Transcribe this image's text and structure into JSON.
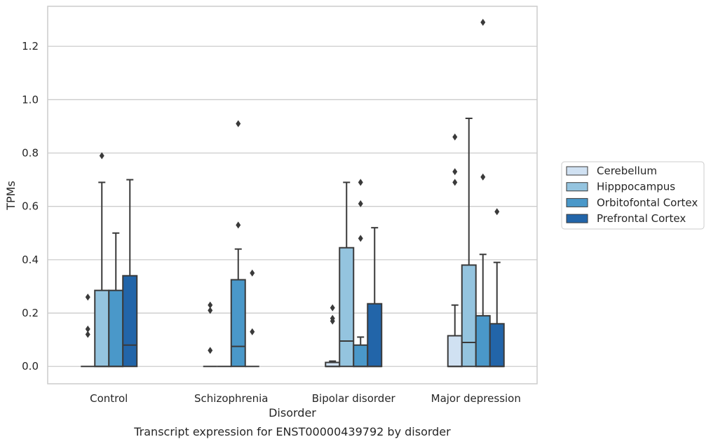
{
  "chart_data": {
    "type": "box",
    "caption": "Transcript expression for ENST00000439792 by disorder",
    "xlabel": "Disorder",
    "ylabel": "TPMs",
    "ylim": [
      -0.065,
      1.35
    ],
    "yticks": [
      0.0,
      0.2,
      0.4,
      0.6,
      0.8,
      1.0,
      1.2
    ],
    "ytick_labels": [
      "0.0",
      "0.2",
      "0.4",
      "0.6",
      "0.8",
      "1.0",
      "1.2"
    ],
    "categories": [
      "Control",
      "Schizophrenia",
      "Bipolar disorder",
      "Major depression"
    ],
    "grid": true,
    "legend_position": "right",
    "series": [
      {
        "name": "Cerebellum",
        "color": "#d0e1f2",
        "boxes": [
          {
            "q1": 0.0,
            "median": 0.0,
            "q3": 0.0,
            "whisker_low": 0.0,
            "whisker_high": 0.0,
            "outliers": [
              0.26,
              0.14,
              0.12
            ]
          },
          {
            "q1": 0.0,
            "median": 0.0,
            "q3": 0.0,
            "whisker_low": 0.0,
            "whisker_high": 0.0,
            "outliers": [
              0.23,
              0.21,
              0.06
            ]
          },
          {
            "q1": 0.0,
            "median": 0.0,
            "q3": 0.015,
            "whisker_low": 0.0,
            "whisker_high": 0.02,
            "outliers": [
              0.22,
              0.18,
              0.17
            ]
          },
          {
            "q1": 0.0,
            "median": 0.0,
            "q3": 0.115,
            "whisker_low": 0.0,
            "whisker_high": 0.23,
            "outliers": [
              0.86,
              0.73,
              0.69
            ]
          }
        ]
      },
      {
        "name": "Hipppocampus",
        "color": "#94c4df",
        "boxes": [
          {
            "q1": 0.0,
            "median": 0.0,
            "q3": 0.285,
            "whisker_low": 0.0,
            "whisker_high": 0.69,
            "outliers": [
              0.79
            ]
          },
          {
            "q1": 0.0,
            "median": 0.0,
            "q3": 0.0,
            "whisker_low": 0.0,
            "whisker_high": 0.0,
            "outliers": []
          },
          {
            "q1": 0.0,
            "median": 0.095,
            "q3": 0.445,
            "whisker_low": 0.0,
            "whisker_high": 0.69,
            "outliers": []
          },
          {
            "q1": 0.0,
            "median": 0.09,
            "q3": 0.38,
            "whisker_low": 0.0,
            "whisker_high": 0.93,
            "outliers": []
          }
        ]
      },
      {
        "name": "Orbitofontal Cortex",
        "color": "#4a98c9",
        "boxes": [
          {
            "q1": 0.0,
            "median": 0.0,
            "q3": 0.285,
            "whisker_low": 0.0,
            "whisker_high": 0.5,
            "outliers": []
          },
          {
            "q1": 0.0,
            "median": 0.075,
            "q3": 0.325,
            "whisker_low": 0.0,
            "whisker_high": 0.44,
            "outliers": [
              0.91,
              0.53
            ]
          },
          {
            "q1": 0.0,
            "median": 0.0,
            "q3": 0.08,
            "whisker_low": 0.0,
            "whisker_high": 0.11,
            "outliers": [
              0.69,
              0.61,
              0.48
            ]
          },
          {
            "q1": 0.0,
            "median": 0.0,
            "q3": 0.19,
            "whisker_low": 0.0,
            "whisker_high": 0.42,
            "outliers": [
              1.29,
              0.71
            ]
          }
        ]
      },
      {
        "name": "Prefrontal Cortex",
        "color": "#2265a9",
        "boxes": [
          {
            "q1": 0.0,
            "median": 0.08,
            "q3": 0.34,
            "whisker_low": 0.0,
            "whisker_high": 0.7,
            "outliers": []
          },
          {
            "q1": 0.0,
            "median": 0.0,
            "q3": 0.0,
            "whisker_low": 0.0,
            "whisker_high": 0.0,
            "outliers": [
              0.35,
              0.13
            ]
          },
          {
            "q1": 0.0,
            "median": 0.0,
            "q3": 0.235,
            "whisker_low": 0.0,
            "whisker_high": 0.52,
            "outliers": []
          },
          {
            "q1": 0.0,
            "median": 0.0,
            "q3": 0.16,
            "whisker_low": 0.0,
            "whisker_high": 0.39,
            "outliers": [
              0.58
            ]
          }
        ]
      }
    ]
  }
}
